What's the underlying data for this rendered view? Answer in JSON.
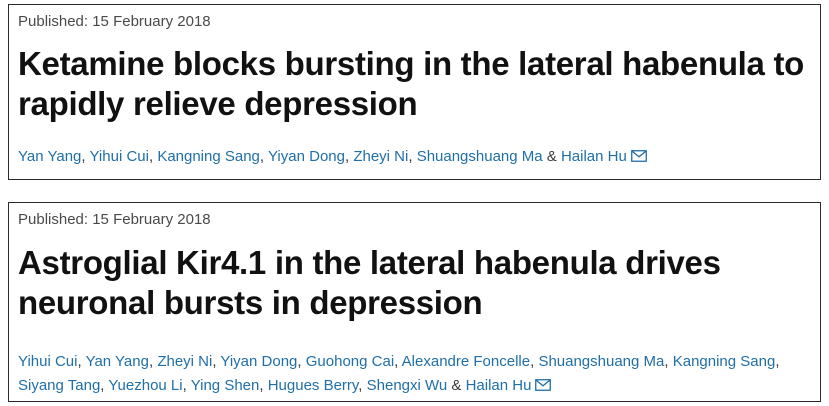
{
  "articles": [
    {
      "published": "Published: 15 February 2018",
      "title": "Ketamine blocks bursting in the lateral habenula to rapidly relieve depression",
      "authors": [
        "Yan Yang",
        "Yihui Cui",
        "Kangning Sang",
        "Yiyan Dong",
        "Zheyi Ni",
        "Shuangshuang Ma"
      ],
      "last_author": "Hailan Hu",
      "separator": ", ",
      "ampersand": " & "
    },
    {
      "published": "Published: 15 February 2018",
      "title": "Astroglial Kir4.1 in the lateral habenula drives neuronal bursts in depression",
      "authors": [
        "Yihui Cui",
        "Yan Yang",
        "Zheyi Ni",
        "Yiyan Dong",
        "Guohong Cai",
        "Alexandre Foncelle",
        "Shuangshuang Ma",
        "Kangning Sang",
        "Siyang Tang",
        "Yuezhou Li",
        "Ying Shen",
        "Hugues Berry",
        "Shengxi Wu"
      ],
      "last_author": "Hailan Hu",
      "separator": ", ",
      "ampersand": " & "
    }
  ],
  "icons": {
    "mail": "mail-icon"
  },
  "colors": {
    "author_link": "#1f6fa8",
    "title": "#111111",
    "published": "#4a4a4a",
    "border": "#2b2b2b"
  }
}
